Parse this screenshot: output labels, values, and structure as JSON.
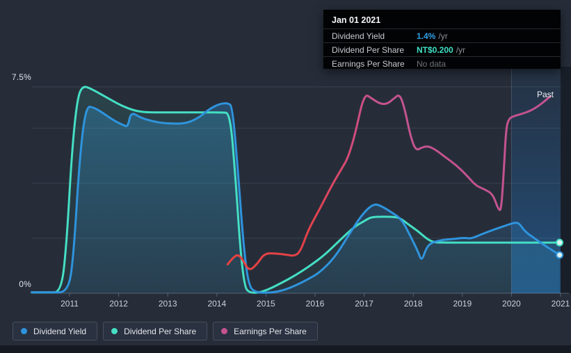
{
  "tooltip": {
    "title": "Jan 01 2021",
    "rows": [
      {
        "label": "Dividend Yield",
        "value": "1.4%",
        "suffix": "/yr",
        "value_color": "#2f9fe6"
      },
      {
        "label": "Dividend Per Share",
        "value": "NT$0.200",
        "suffix": "/yr",
        "value_color": "#41e1c8"
      },
      {
        "label": "Earnings Per Share",
        "value": "No data",
        "suffix": "",
        "value_color": "#6e747b"
      }
    ]
  },
  "legend": {
    "items": [
      {
        "label": "Dividend Yield",
        "color": "#2f94dd"
      },
      {
        "label": "Dividend Per Share",
        "color": "#45dfc4"
      },
      {
        "label": "Earnings Per Share",
        "color": "#c4538f"
      }
    ]
  },
  "chart_data": {
    "type": "line",
    "title": "Dividend history (past)",
    "past_label": "Past",
    "y_axis": {
      "max_label": "7.5%",
      "min_label": "0%",
      "ylim": [
        0,
        7.5
      ],
      "gridline_values": [
        7.5,
        6,
        4,
        2
      ],
      "unit": "percent (plotted scale)"
    },
    "x_ticks": [
      {
        "year": 2011,
        "label": "2011"
      },
      {
        "year": 2012,
        "label": "2012"
      },
      {
        "year": 2013,
        "label": "2013"
      },
      {
        "year": 2014,
        "label": "2014"
      },
      {
        "year": 2015,
        "label": "2015"
      },
      {
        "year": 2016,
        "label": "2016"
      },
      {
        "year": 2017,
        "label": "2017"
      },
      {
        "year": 2018,
        "label": "2018"
      },
      {
        "year": 2019,
        "label": "2019"
      },
      {
        "year": 2020,
        "label": "2020"
      },
      {
        "year": 2021,
        "label": "2021"
      }
    ],
    "highlight_band": {
      "from_year": 2020,
      "to_year": 2021,
      "label": "Past"
    },
    "current_values": {
      "dividend_yield": "1.4% /yr",
      "dividend_per_share": "NT$0.200 /yr",
      "earnings_per_share": "No data"
    },
    "series": [
      {
        "name": "Dividend Yield",
        "color": "#2f94dd",
        "fill": true,
        "fill_alpha_top": 0.32,
        "fill_alpha_bottom": 0.1,
        "end_dot": true,
        "points": [
          [
            2010.23,
            0.03
          ],
          [
            2010.6,
            0.03
          ],
          [
            2010.97,
            0.03
          ],
          [
            2011.08,
            1.3
          ],
          [
            2011.2,
            4.8
          ],
          [
            2011.33,
            6.8
          ],
          [
            2011.5,
            6.75
          ],
          [
            2011.68,
            6.55
          ],
          [
            2011.9,
            6.28
          ],
          [
            2012.1,
            6.1
          ],
          [
            2012.19,
            6.05
          ],
          [
            2012.25,
            6.6
          ],
          [
            2012.45,
            6.37
          ],
          [
            2012.8,
            6.2
          ],
          [
            2013.1,
            6.16
          ],
          [
            2013.4,
            6.18
          ],
          [
            2013.65,
            6.4
          ],
          [
            2013.85,
            6.7
          ],
          [
            2014.05,
            6.88
          ],
          [
            2014.22,
            6.92
          ],
          [
            2014.32,
            6.78
          ],
          [
            2014.44,
            4.2
          ],
          [
            2014.55,
            1.6
          ],
          [
            2014.65,
            0.25
          ],
          [
            2014.8,
            0.02
          ],
          [
            2015.1,
            0.02
          ],
          [
            2015.35,
            0.1
          ],
          [
            2015.6,
            0.28
          ],
          [
            2015.85,
            0.5
          ],
          [
            2016.1,
            0.76
          ],
          [
            2016.4,
            1.3
          ],
          [
            2016.67,
            2.07
          ],
          [
            2016.95,
            2.85
          ],
          [
            2017.19,
            3.26
          ],
          [
            2017.35,
            3.17
          ],
          [
            2017.55,
            2.95
          ],
          [
            2017.76,
            2.7
          ],
          [
            2017.95,
            2.05
          ],
          [
            2018.1,
            1.5
          ],
          [
            2018.17,
            1.16
          ],
          [
            2018.26,
            1.62
          ],
          [
            2018.35,
            1.82
          ],
          [
            2018.55,
            1.93
          ],
          [
            2018.8,
            1.97
          ],
          [
            2019.05,
            2.02
          ],
          [
            2019.17,
            1.98
          ],
          [
            2019.4,
            2.15
          ],
          [
            2019.65,
            2.32
          ],
          [
            2019.9,
            2.47
          ],
          [
            2020.08,
            2.58
          ],
          [
            2020.17,
            2.52
          ],
          [
            2020.27,
            2.25
          ],
          [
            2020.45,
            2.02
          ],
          [
            2020.65,
            1.77
          ],
          [
            2020.85,
            1.54
          ],
          [
            2020.98,
            1.39
          ]
        ]
      },
      {
        "name": "Dividend Per Share",
        "color": "#45dfc4",
        "fill": true,
        "fill_alpha_top": 0.12,
        "fill_alpha_bottom": 0.04,
        "end_dot": true,
        "points": [
          [
            2010.23,
            0.03
          ],
          [
            2010.55,
            0.03
          ],
          [
            2010.83,
            0.03
          ],
          [
            2010.94,
            1.8
          ],
          [
            2011.05,
            5.2
          ],
          [
            2011.16,
            7.1
          ],
          [
            2011.27,
            7.55
          ],
          [
            2011.45,
            7.42
          ],
          [
            2011.65,
            7.22
          ],
          [
            2011.87,
            7.0
          ],
          [
            2012.08,
            6.8
          ],
          [
            2012.3,
            6.65
          ],
          [
            2012.5,
            6.58
          ],
          [
            2012.8,
            6.57
          ],
          [
            2013.2,
            6.57
          ],
          [
            2013.7,
            6.57
          ],
          [
            2014.1,
            6.57
          ],
          [
            2014.27,
            6.55
          ],
          [
            2014.38,
            4.2
          ],
          [
            2014.48,
            1.5
          ],
          [
            2014.57,
            0.22
          ],
          [
            2014.66,
            0.02
          ],
          [
            2014.86,
            0.02
          ],
          [
            2015.05,
            0.14
          ],
          [
            2015.3,
            0.36
          ],
          [
            2015.6,
            0.65
          ],
          [
            2015.9,
            1.0
          ],
          [
            2016.2,
            1.4
          ],
          [
            2016.5,
            1.92
          ],
          [
            2016.8,
            2.42
          ],
          [
            2017.0,
            2.62
          ],
          [
            2017.12,
            2.75
          ],
          [
            2017.25,
            2.78
          ],
          [
            2017.55,
            2.78
          ],
          [
            2017.72,
            2.75
          ],
          [
            2017.9,
            2.5
          ],
          [
            2018.1,
            2.25
          ],
          [
            2018.28,
            1.97
          ],
          [
            2018.42,
            1.85
          ],
          [
            2018.55,
            1.84
          ],
          [
            2019.2,
            1.84
          ],
          [
            2019.9,
            1.84
          ],
          [
            2020.5,
            1.84
          ],
          [
            2020.98,
            1.84
          ]
        ]
      },
      {
        "name": "Earnings Per Share",
        "color": "#c4538f",
        "color_start": "#e8433f",
        "gradient": true,
        "fill": false,
        "end_dot": false,
        "points": [
          [
            2014.22,
            1.05
          ],
          [
            2014.33,
            1.3
          ],
          [
            2014.44,
            1.42
          ],
          [
            2014.55,
            1.15
          ],
          [
            2014.66,
            0.8
          ],
          [
            2014.83,
            1.08
          ],
          [
            2014.97,
            1.45
          ],
          [
            2015.2,
            1.45
          ],
          [
            2015.42,
            1.4
          ],
          [
            2015.57,
            1.35
          ],
          [
            2015.7,
            1.5
          ],
          [
            2015.86,
            2.3
          ],
          [
            2016.1,
            3.08
          ],
          [
            2016.35,
            3.95
          ],
          [
            2016.55,
            4.55
          ],
          [
            2016.67,
            4.92
          ],
          [
            2016.81,
            5.73
          ],
          [
            2017.0,
            7.27
          ],
          [
            2017.16,
            7.07
          ],
          [
            2017.33,
            6.88
          ],
          [
            2017.47,
            6.88
          ],
          [
            2017.6,
            7.07
          ],
          [
            2017.73,
            7.25
          ],
          [
            2017.84,
            6.6
          ],
          [
            2017.94,
            5.73
          ],
          [
            2018.05,
            5.18
          ],
          [
            2018.18,
            5.3
          ],
          [
            2018.3,
            5.35
          ],
          [
            2018.45,
            5.22
          ],
          [
            2018.65,
            4.95
          ],
          [
            2018.88,
            4.65
          ],
          [
            2019.08,
            4.3
          ],
          [
            2019.28,
            3.9
          ],
          [
            2019.45,
            3.78
          ],
          [
            2019.62,
            3.6
          ],
          [
            2019.73,
            3.05
          ],
          [
            2019.79,
            3.0
          ],
          [
            2019.84,
            4.3
          ],
          [
            2019.89,
            6.0
          ],
          [
            2019.95,
            6.36
          ],
          [
            2020.07,
            6.45
          ],
          [
            2020.22,
            6.52
          ],
          [
            2020.4,
            6.64
          ],
          [
            2020.58,
            6.84
          ],
          [
            2020.72,
            7.05
          ],
          [
            2020.79,
            7.15
          ]
        ]
      }
    ]
  }
}
